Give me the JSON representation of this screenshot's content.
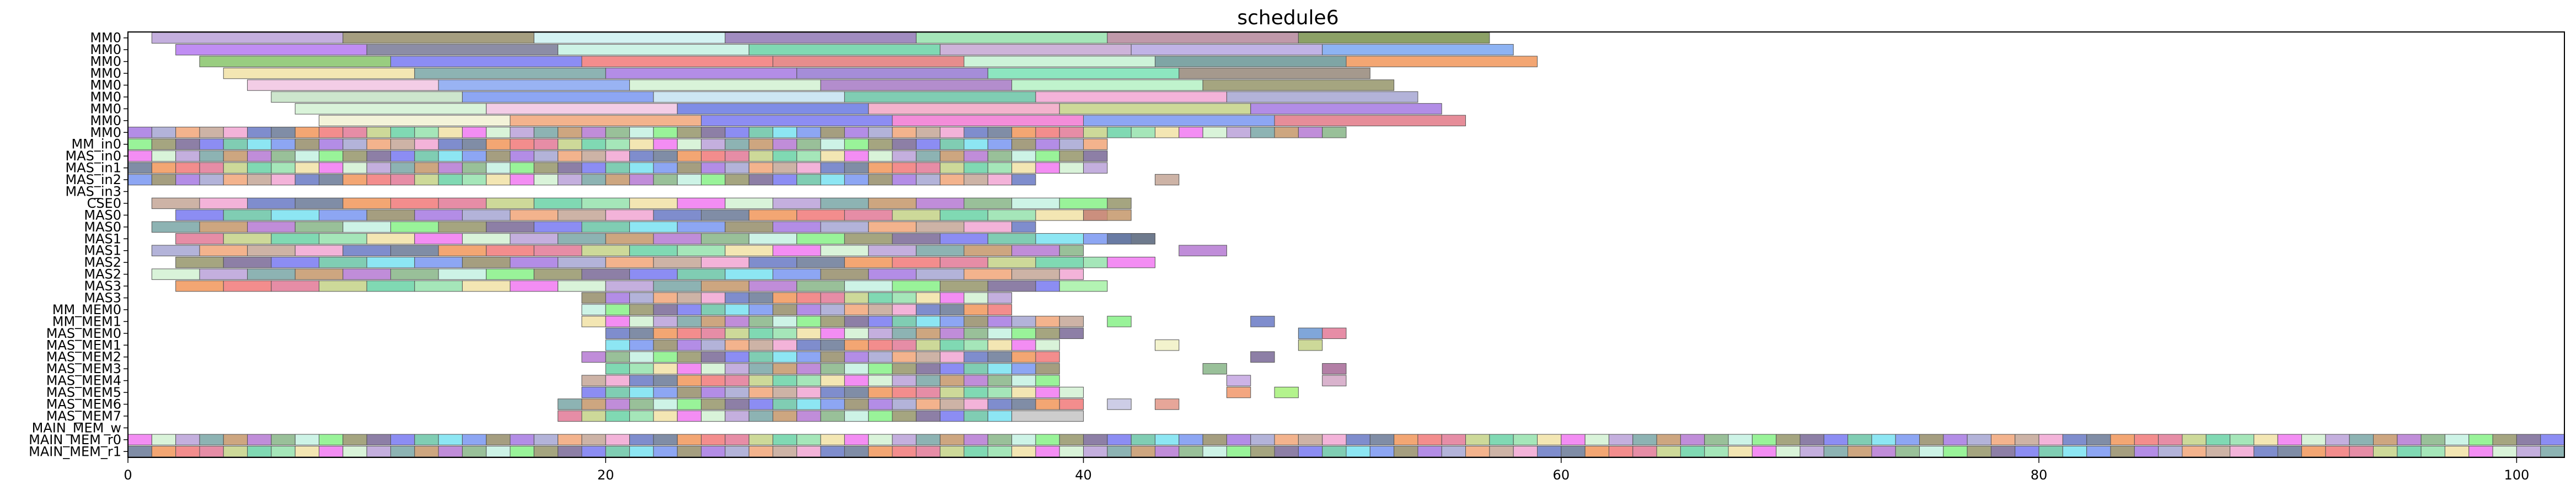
{
  "chart_data": {
    "type": "gantt",
    "title": "schedule6",
    "xlabel": "",
    "ylabel": "",
    "xlim": [
      0,
      102
    ],
    "x_ticks": [
      0,
      20,
      40,
      60,
      80,
      100
    ],
    "rows": [
      "MM0",
      "MM0",
      "MM0",
      "MM0",
      "MM0",
      "MM0",
      "MM0",
      "MM0",
      "MM0",
      "MM_in0",
      "MAS_in0",
      "MAS_in1",
      "MAS_in2",
      "MAS_in3",
      "CSE0",
      "MAS0",
      "MAS0",
      "MAS1",
      "MAS1",
      "MAS2",
      "MAS2",
      "MAS3",
      "MAS3",
      "MM_MEM0",
      "MM_MEM1",
      "MAS_MEM0",
      "MAS_MEM1",
      "MAS_MEM2",
      "MAS_MEM3",
      "MAS_MEM4",
      "MAS_MEM5",
      "MAS_MEM6",
      "MAS_MEM7",
      "MAIN_MEM_w",
      "MAIN_MEM_r0",
      "MAIN_MEM_r1"
    ],
    "bars": [
      {
        "row": 0,
        "start": 1,
        "end": 9,
        "color": "#b59bd6"
      },
      {
        "row": 0,
        "start": 9,
        "end": 17,
        "color": "#8f8660"
      },
      {
        "row": 0,
        "start": 17,
        "end": 25,
        "color": "#c9f0f0"
      },
      {
        "row": 0,
        "start": 25,
        "end": 33,
        "color": "#8a6fb0"
      },
      {
        "row": 0,
        "start": 33,
        "end": 41,
        "color": "#8fe0a8"
      },
      {
        "row": 0,
        "start": 41,
        "end": 49,
        "color": "#b07f95"
      },
      {
        "row": 0,
        "start": 49,
        "end": 57,
        "color": "#6f8a40"
      },
      {
        "row": 1,
        "start": 2,
        "end": 10,
        "color": "#b070f0"
      },
      {
        "row": 1,
        "start": 10,
        "end": 18,
        "color": "#6f7090"
      },
      {
        "row": 1,
        "start": 18,
        "end": 26,
        "color": "#c0f0e0"
      },
      {
        "row": 1,
        "start": 26,
        "end": 34,
        "color": "#60d0a0"
      },
      {
        "row": 1,
        "start": 34,
        "end": 42,
        "color": "#c0a0d0"
      },
      {
        "row": 1,
        "start": 42,
        "end": 50,
        "color": "#b0a0e0"
      },
      {
        "row": 1,
        "start": 50,
        "end": 58,
        "color": "#70a0f0"
      },
      {
        "row": 2,
        "start": 3,
        "end": 11,
        "color": "#80c060"
      },
      {
        "row": 2,
        "start": 11,
        "end": 19,
        "color": "#6f70f0"
      },
      {
        "row": 2,
        "start": 19,
        "end": 27,
        "color": "#f07070"
      },
      {
        "row": 2,
        "start": 27,
        "end": 35,
        "color": "#e07070"
      },
      {
        "row": 2,
        "start": 35,
        "end": 43,
        "color": "#c0f0d0"
      },
      {
        "row": 2,
        "start": 43,
        "end": 51,
        "color": "#5f8f8f"
      },
      {
        "row": 2,
        "start": 51,
        "end": 59,
        "color": "#f09050"
      },
      {
        "row": 3,
        "start": 4,
        "end": 12,
        "color": "#f0e0a0"
      },
      {
        "row": 3,
        "start": 12,
        "end": 20,
        "color": "#70a0a0"
      },
      {
        "row": 3,
        "start": 20,
        "end": 28,
        "color": "#a070e0"
      },
      {
        "row": 3,
        "start": 28,
        "end": 36,
        "color": "#8f70d0"
      },
      {
        "row": 3,
        "start": 36,
        "end": 44,
        "color": "#70e0b0"
      },
      {
        "row": 3,
        "start": 44,
        "end": 52,
        "color": "#8f8070"
      },
      {
        "row": 4,
        "start": 5,
        "end": 13,
        "color": "#f0c0e0"
      },
      {
        "row": 4,
        "start": 13,
        "end": 21,
        "color": "#80a0f0"
      },
      {
        "row": 4,
        "start": 21,
        "end": 29,
        "color": "#d0f0d0"
      },
      {
        "row": 4,
        "start": 29,
        "end": 37,
        "color": "#a070c0"
      },
      {
        "row": 4,
        "start": 37,
        "end": 45,
        "color": "#b0f0c0"
      },
      {
        "row": 4,
        "start": 45,
        "end": 53,
        "color": "#8f8f60"
      },
      {
        "row": 5,
        "start": 6,
        "end": 14,
        "color": "#c0e0c0"
      },
      {
        "row": 5,
        "start": 14,
        "end": 22,
        "color": "#7090f0"
      },
      {
        "row": 5,
        "start": 22,
        "end": 30,
        "color": "#c0e0f0"
      },
      {
        "row": 5,
        "start": 30,
        "end": 38,
        "color": "#60c0a0"
      },
      {
        "row": 5,
        "start": 38,
        "end": 46,
        "color": "#f0a0d0"
      },
      {
        "row": 5,
        "start": 46,
        "end": 54,
        "color": "#a0a0d0"
      },
      {
        "row": 6,
        "start": 7,
        "end": 15,
        "color": "#d0f0d0"
      },
      {
        "row": 6,
        "start": 15,
        "end": 23,
        "color": "#f0c0e0"
      },
      {
        "row": 6,
        "start": 23,
        "end": 31,
        "color": "#5f70e0"
      },
      {
        "row": 6,
        "start": 31,
        "end": 39,
        "color": "#f0a0c0"
      },
      {
        "row": 6,
        "start": 39,
        "end": 47,
        "color": "#c0d080"
      },
      {
        "row": 6,
        "start": 47,
        "end": 55,
        "color": "#9f70e0"
      },
      {
        "row": 7,
        "start": 8,
        "end": 16,
        "color": "#f0f0d0"
      },
      {
        "row": 7,
        "start": 16,
        "end": 24,
        "color": "#f0a070"
      },
      {
        "row": 7,
        "start": 24,
        "end": 32,
        "color": "#7070f0"
      },
      {
        "row": 7,
        "start": 32,
        "end": 40,
        "color": "#f070d0"
      },
      {
        "row": 7,
        "start": 40,
        "end": 48,
        "color": "#7090f0"
      },
      {
        "row": 7,
        "start": 48,
        "end": 56,
        "color": "#e07080"
      }
    ],
    "dense_rows": [
      {
        "row": 8,
        "start": 0,
        "end": 51,
        "step": 1
      },
      {
        "row": 9,
        "start": 0,
        "end": 41,
        "step": 1
      },
      {
        "row": 10,
        "start": 0,
        "end": 41,
        "step": 1
      },
      {
        "row": 11,
        "start": 0,
        "end": 41,
        "step": 1
      },
      {
        "row": 12,
        "start": 0,
        "end": 38,
        "step": 1
      },
      {
        "row": 14,
        "start": 1,
        "end": 42,
        "step": 2
      },
      {
        "row": 15,
        "start": 2,
        "end": 41,
        "step": 2
      },
      {
        "row": 16,
        "start": 1,
        "end": 38,
        "step": 2
      },
      {
        "row": 17,
        "start": 2,
        "end": 43,
        "step": 2
      },
      {
        "row": 18,
        "start": 1,
        "end": 40,
        "step": 2
      },
      {
        "row": 19,
        "start": 2,
        "end": 41,
        "step": 2
      },
      {
        "row": 20,
        "start": 1,
        "end": 40,
        "step": 2
      },
      {
        "row": 21,
        "start": 2,
        "end": 39,
        "step": 2
      },
      {
        "row": 22,
        "start": 19,
        "end": 37,
        "step": 1
      },
      {
        "row": 23,
        "start": 19,
        "end": 37,
        "step": 1
      },
      {
        "row": 24,
        "start": 19,
        "end": 40,
        "step": 1
      },
      {
        "row": 25,
        "start": 20,
        "end": 40,
        "step": 1
      },
      {
        "row": 26,
        "start": 20,
        "end": 39,
        "step": 1
      },
      {
        "row": 27,
        "start": 19,
        "end": 39,
        "step": 1
      },
      {
        "row": 28,
        "start": 20,
        "end": 39,
        "step": 1
      },
      {
        "row": 29,
        "start": 19,
        "end": 39,
        "step": 1
      },
      {
        "row": 30,
        "start": 19,
        "end": 40,
        "step": 1
      },
      {
        "row": 31,
        "start": 18,
        "end": 40,
        "step": 1
      },
      {
        "row": 32,
        "start": 18,
        "end": 37,
        "step": 1
      },
      {
        "row": 34,
        "start": 0,
        "end": 102,
        "step": 1
      },
      {
        "row": 35,
        "start": 0,
        "end": 102,
        "step": 1
      }
    ],
    "extra_bars": [
      {
        "row": 12,
        "start": 43,
        "end": 44,
        "color": "#c0a090"
      },
      {
        "row": 15,
        "start": 40,
        "end": 42,
        "color": "#c09060"
      },
      {
        "row": 17,
        "start": 41,
        "end": 43,
        "color": "#607090"
      },
      {
        "row": 18,
        "start": 44,
        "end": 46,
        "color": "#b070d0"
      },
      {
        "row": 19,
        "start": 41,
        "end": 43,
        "color": "#f070f0"
      },
      {
        "row": 21,
        "start": 39,
        "end": 41,
        "color": "#a0f0a0"
      },
      {
        "row": 24,
        "start": 41,
        "end": 42,
        "color": "#80f080"
      },
      {
        "row": 24,
        "start": 47,
        "end": 48,
        "color": "#5f70c0"
      },
      {
        "row": 25,
        "start": 49,
        "end": 50,
        "color": "#6090d0"
      },
      {
        "row": 25,
        "start": 50,
        "end": 51,
        "color": "#e07090"
      },
      {
        "row": 26,
        "start": 49,
        "end": 50,
        "color": "#c0d080"
      },
      {
        "row": 26,
        "start": 43,
        "end": 44,
        "color": "#f0f0c0"
      },
      {
        "row": 27,
        "start": 47,
        "end": 48,
        "color": "#705f90"
      },
      {
        "row": 28,
        "start": 45,
        "end": 46,
        "color": "#80b080"
      },
      {
        "row": 28,
        "start": 50,
        "end": 51,
        "color": "#a05f90"
      },
      {
        "row": 29,
        "start": 46,
        "end": 47,
        "color": "#c0a0e0"
      },
      {
        "row": 29,
        "start": 50,
        "end": 51,
        "color": "#d0a0c0"
      },
      {
        "row": 30,
        "start": 46,
        "end": 47,
        "color": "#f09060"
      },
      {
        "row": 30,
        "start": 48,
        "end": 49,
        "color": "#a0f070"
      },
      {
        "row": 31,
        "start": 41,
        "end": 42,
        "color": "#c0c0e0"
      },
      {
        "row": 31,
        "start": 43,
        "end": 44,
        "color": "#e09080"
      },
      {
        "row": 32,
        "start": 37,
        "end": 40,
        "color": "#c0c0c0"
      }
    ],
    "palette": [
      "#b59bd6",
      "#8f8660",
      "#8fe0a8",
      "#6f70f0",
      "#f07070",
      "#c0f0e0",
      "#f0a0d0",
      "#70a0a0",
      "#a070e0",
      "#f0e0a0",
      "#60c0a0",
      "#e07090",
      "#80f080",
      "#5f70c0",
      "#c09060",
      "#a0a0d0",
      "#f070f0",
      "#70e0f0",
      "#c0d080",
      "#8f8f60",
      "#607090",
      "#b070d0",
      "#f0a070",
      "#d0f0d0",
      "#7090f0",
      "#60d0a0",
      "#705f90",
      "#f09050",
      "#80b080",
      "#c0a090"
    ],
    "grid": false,
    "legend": "none"
  }
}
